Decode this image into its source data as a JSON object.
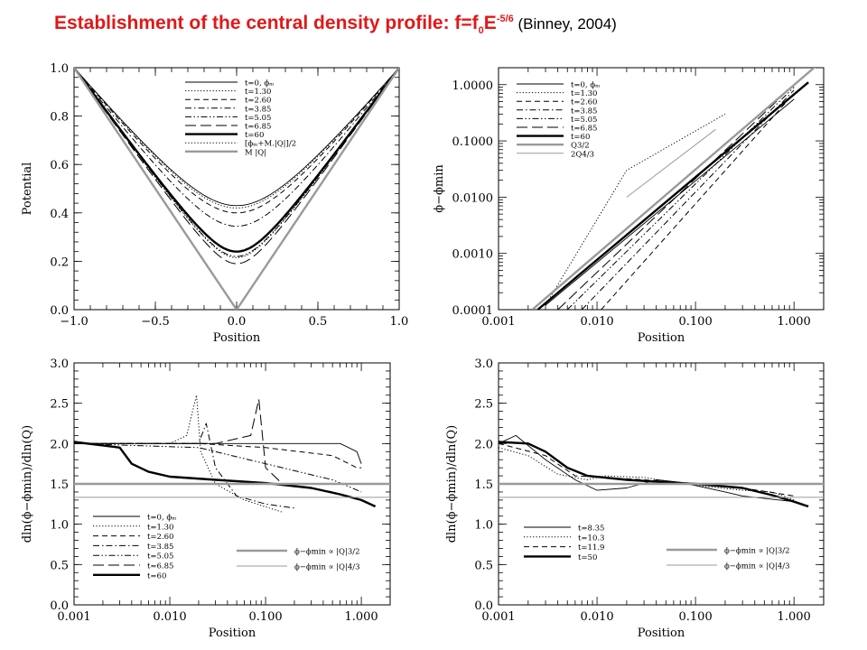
{
  "title": {
    "main_a": "Establishment of the central density profile: f=f",
    "main_sub": "0",
    "main_b": "E",
    "main_sup": "-5/6",
    "cite": " (Binney, 2004)"
  },
  "colors": {
    "title": "#e11818",
    "gray_series": "#9a9a9a",
    "ink": "#000000"
  },
  "chart_data": [
    {
      "type": "line",
      "xlabel": "Position",
      "ylabel": "Potential",
      "xscale": "linear",
      "yscale": "linear",
      "xlim": [
        -1.0,
        1.0
      ],
      "ylim": [
        0.0,
        1.0
      ],
      "xticks": [
        -1.0,
        -0.5,
        0.0,
        0.5,
        1.0
      ],
      "xtick_labels": [
        "−1.0",
        "−0.5",
        "0.0",
        "0.5",
        "1.0"
      ],
      "yticks": [
        0.0,
        0.2,
        0.4,
        0.6,
        0.8,
        1.0
      ],
      "ytick_labels": [
        "0.0",
        "0.2",
        "0.4",
        "0.6",
        "0.8",
        "1.0"
      ],
      "legend": [
        "t=0, ϕₘ",
        "t=1.30",
        "t=2.60",
        "t=3.85",
        "t=5.05",
        "t=6.85",
        "t=60",
        "[ϕₘ+M.|Q|]/2",
        "M |Q|"
      ],
      "legend_position": "top-center",
      "series": [
        {
          "name": "t=0, ϕₘ",
          "style": "solid-thin",
          "min": 0.43
        },
        {
          "name": "t=1.30",
          "style": "dotted",
          "min": 0.42
        },
        {
          "name": "t=2.60",
          "style": "dashed",
          "min": 0.4
        },
        {
          "name": "t=3.85",
          "style": "dashdot",
          "min": 0.345
        },
        {
          "name": "t=5.05",
          "style": "dashdotdot",
          "min": 0.22
        },
        {
          "name": "t=6.85",
          "style": "longdash",
          "min": 0.19
        },
        {
          "name": "t=60",
          "style": "solid-thick",
          "min": 0.24
        },
        {
          "name": "[ϕₘ+M.|Q|]/2",
          "style": "dotted",
          "min": 0.215
        },
        {
          "name": "M |Q|",
          "style": "gray-thick",
          "min": 0.0
        }
      ]
    },
    {
      "type": "line",
      "xlabel": "Position",
      "ylabel": "ϕ−ϕmin",
      "xscale": "log",
      "yscale": "log",
      "xlim": [
        0.001,
        2.0
      ],
      "ylim": [
        0.0001,
        2.0
      ],
      "xticks": [
        0.001,
        0.01,
        0.1,
        1.0
      ],
      "xtick_labels": [
        "0.001",
        "0.010",
        "0.100",
        "1.000"
      ],
      "yticks": [
        0.0001,
        0.001,
        0.01,
        0.1,
        1.0
      ],
      "ytick_labels": [
        "0.0001",
        "0.0010",
        "0.0100",
        "0.1000",
        "1.0000"
      ],
      "legend": [
        "t=0, ϕₘ",
        "t=1.30",
        "t=2.60",
        "t=3.85",
        "t=5.05",
        "t=6.85",
        "t=60",
        "Q3/2",
        "2Q4/3"
      ],
      "legend_position": "top-left",
      "series": [
        {
          "name": "t=0, ϕₘ",
          "style": "solid-thin",
          "x": [
            0.003,
            1.0
          ],
          "y": [
            0.00012,
            0.55
          ]
        },
        {
          "name": "t=1.30",
          "style": "dotted",
          "x": [
            0.003,
            0.02,
            0.2
          ],
          "y": [
            0.00012,
            0.03,
            0.3
          ]
        },
        {
          "name": "t=2.60",
          "style": "dashed",
          "x": [
            0.011,
            1.0
          ],
          "y": [
            0.0001,
            0.7
          ]
        },
        {
          "name": "t=3.85",
          "style": "dashdot",
          "x": [
            0.007,
            1.0
          ],
          "y": [
            0.0001,
            0.8
          ]
        },
        {
          "name": "t=5.05",
          "style": "dashdotdot",
          "x": [
            0.005,
            1.0
          ],
          "y": [
            0.0001,
            0.9
          ]
        },
        {
          "name": "t=6.85",
          "style": "longdash",
          "x": [
            0.004,
            1.0
          ],
          "y": [
            0.0001,
            1.0
          ]
        },
        {
          "name": "t=60",
          "style": "solid-thick",
          "x": [
            0.0025,
            1.4
          ],
          "y": [
            0.0001,
            1.1
          ]
        },
        {
          "name": "Q3/2",
          "style": "gray-thick",
          "x": [
            0.0022,
            2.0
          ],
          "y": [
            0.0001,
            2.8
          ]
        },
        {
          "name": "2Q4/3",
          "style": "gray-thin",
          "x": [
            0.02,
            0.16
          ],
          "y": [
            0.01,
            0.16
          ]
        }
      ]
    },
    {
      "type": "line",
      "xlabel": "Position",
      "ylabel": "dln(ϕ−ϕmin)/dln(Q)",
      "xscale": "log",
      "yscale": "linear",
      "xlim": [
        0.001,
        2.0
      ],
      "ylim": [
        0.0,
        3.0
      ],
      "xticks": [
        0.001,
        0.01,
        0.1,
        1.0
      ],
      "xtick_labels": [
        "0.001",
        "0.010",
        "0.100",
        "1.000"
      ],
      "yticks": [
        0.0,
        0.5,
        1.0,
        1.5,
        2.0,
        2.5,
        3.0
      ],
      "ytick_labels": [
        "0.0",
        "0.5",
        "1.0",
        "1.5",
        "2.0",
        "2.5",
        "3.0"
      ],
      "legend": [
        "t=0, ϕₘ",
        "t=1.30",
        "t=2.60",
        "t=3.85",
        "t=5.05",
        "t=6.85",
        "t=60",
        "ϕ−ϕmin ∝ |Q|3/2",
        "ϕ−ϕmin ∝ |Q|4/3"
      ],
      "legend_position": "bottom",
      "series": [
        {
          "name": "t=0, ϕₘ",
          "style": "solid-thin",
          "x": [
            0.001,
            0.3,
            0.6,
            0.9,
            1.0
          ],
          "y": [
            2.0,
            2.0,
            2.0,
            1.9,
            1.75
          ]
        },
        {
          "name": "t=1.30",
          "style": "dotted",
          "x": [
            0.001,
            0.01,
            0.015,
            0.019,
            0.021,
            0.03,
            0.06,
            0.15
          ],
          "y": [
            2.0,
            2.0,
            2.1,
            2.6,
            1.9,
            1.5,
            1.3,
            1.15
          ]
        },
        {
          "name": "t=2.60",
          "style": "dashed",
          "x": [
            0.001,
            0.02,
            0.1,
            0.5,
            0.9,
            1.0
          ],
          "y": [
            2.0,
            2.0,
            1.95,
            1.85,
            1.7,
            1.7
          ]
        },
        {
          "name": "t=3.85",
          "style": "dashdot",
          "x": [
            0.001,
            0.02,
            0.024,
            0.03,
            0.05,
            0.1,
            0.2
          ],
          "y": [
            2.0,
            2.0,
            2.25,
            1.7,
            1.35,
            1.25,
            1.2
          ]
        },
        {
          "name": "t=5.05",
          "style": "dashdotdot",
          "x": [
            0.001,
            0.02,
            0.1,
            0.5,
            1.0
          ],
          "y": [
            2.0,
            1.95,
            1.75,
            1.55,
            1.4
          ]
        },
        {
          "name": "t=6.85",
          "style": "longdash",
          "x": [
            0.001,
            0.03,
            0.07,
            0.085,
            0.1,
            0.15,
            0.3,
            0.5
          ],
          "y": [
            2.0,
            2.0,
            2.1,
            2.55,
            1.7,
            1.5,
            1.45,
            1.4
          ]
        },
        {
          "name": "t=60",
          "style": "solid-thick",
          "x": [
            0.001,
            0.003,
            0.004,
            0.006,
            0.01,
            0.03,
            0.1,
            0.3,
            0.6,
            1.0,
            1.4
          ],
          "y": [
            2.02,
            1.95,
            1.75,
            1.65,
            1.59,
            1.55,
            1.51,
            1.45,
            1.37,
            1.3,
            1.22
          ]
        },
        {
          "name": "ϕ−ϕmin ∝ |Q|3/2",
          "style": "gray-thick",
          "x": [
            0.001,
            2.0
          ],
          "y": [
            1.5,
            1.5
          ]
        },
        {
          "name": "ϕ−ϕmin ∝ |Q|4/3",
          "style": "gray-thin",
          "x": [
            0.001,
            2.0
          ],
          "y": [
            1.333,
            1.333
          ]
        }
      ]
    },
    {
      "type": "line",
      "xlabel": "Position",
      "ylabel": "dln(ϕ−ϕmin)/dln(Q)",
      "xscale": "log",
      "yscale": "linear",
      "xlim": [
        0.001,
        2.0
      ],
      "ylim": [
        0.0,
        3.0
      ],
      "xticks": [
        0.001,
        0.01,
        0.1,
        1.0
      ],
      "xtick_labels": [
        "0.001",
        "0.010",
        "0.100",
        "1.000"
      ],
      "yticks": [
        0.0,
        0.5,
        1.0,
        1.5,
        2.0,
        2.5,
        3.0
      ],
      "ytick_labels": [
        "0.0",
        "0.5",
        "1.0",
        "1.5",
        "2.0",
        "2.5",
        "3.0"
      ],
      "legend": [
        "t=8.35",
        "t=10.3",
        "t=11.9",
        "t=50",
        "ϕ−ϕmin ∝ |Q|3/2",
        "ϕ−ϕmin ∝ |Q|4/3"
      ],
      "legend_position": "bottom",
      "series": [
        {
          "name": "t=8.35",
          "style": "solid-thin",
          "x": [
            0.001,
            0.0015,
            0.003,
            0.006,
            0.01,
            0.02,
            0.04,
            0.07,
            0.1,
            0.2,
            0.3,
            0.5,
            1.0
          ],
          "y": [
            2.0,
            2.1,
            1.8,
            1.55,
            1.42,
            1.45,
            1.55,
            1.52,
            1.48,
            1.4,
            1.35,
            1.32,
            1.28
          ]
        },
        {
          "name": "t=10.3",
          "style": "dotted",
          "x": [
            0.001,
            0.002,
            0.004,
            0.008,
            0.012,
            0.03,
            0.1,
            0.3,
            0.6,
            1.0
          ],
          "y": [
            1.95,
            1.85,
            1.62,
            1.55,
            1.6,
            1.58,
            1.48,
            1.42,
            1.4,
            1.3
          ]
        },
        {
          "name": "t=11.9",
          "style": "dashed",
          "x": [
            0.001,
            0.003,
            0.006,
            0.012,
            0.03,
            0.1,
            0.3,
            0.7,
            1.0
          ],
          "y": [
            2.0,
            1.85,
            1.6,
            1.58,
            1.55,
            1.5,
            1.45,
            1.38,
            1.35
          ]
        },
        {
          "name": "t=50",
          "style": "solid-thick",
          "x": [
            0.001,
            0.002,
            0.003,
            0.005,
            0.008,
            0.02,
            0.05,
            0.1,
            0.3,
            0.6,
            1.0,
            1.4
          ],
          "y": [
            2.02,
            2.0,
            1.9,
            1.7,
            1.6,
            1.55,
            1.52,
            1.5,
            1.45,
            1.36,
            1.28,
            1.22
          ]
        },
        {
          "name": "ϕ−ϕmin ∝ |Q|3/2",
          "style": "gray-thick",
          "x": [
            0.001,
            2.0
          ],
          "y": [
            1.5,
            1.5
          ]
        },
        {
          "name": "ϕ−ϕmin ∝ |Q|4/3",
          "style": "gray-thin",
          "x": [
            0.001,
            2.0
          ],
          "y": [
            1.333,
            1.333
          ]
        }
      ]
    }
  ]
}
